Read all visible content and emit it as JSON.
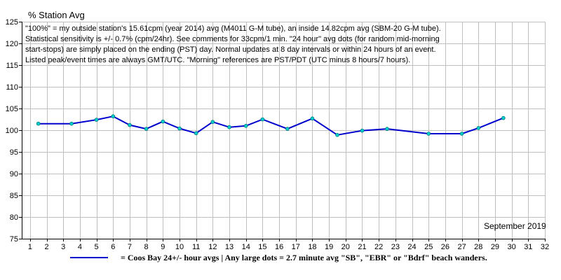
{
  "chart_data": {
    "type": "line",
    "title": "% Station Avg",
    "notes": [
      "\"100%\" = my outside station's 15.61cpm (year 2014) avg (M4011 G-M tube), an inside 14.82cpm avg (SBM-20 G-M tube).",
      "Statistical sensitivity is +/- 0.7% (cpm/24hr). See comments for 33cpm/1 min. \"24 hour\" avg dots (for random mid-morning",
      "start-stops) are simply placed on the ending (PST) day. Normal updates at 8 day intervals or within 24 hours of an event.",
      "Listed peak/event times are always GMT/UTC.  \"Morning\" references are PST/PDT (UTC minus 8 hours/7 hours)."
    ],
    "period_label": "September 2019",
    "xlim": [
      0.5,
      32
    ],
    "ylim": [
      75,
      125
    ],
    "x_ticks": [
      1,
      2,
      3,
      4,
      5,
      6,
      7,
      8,
      9,
      10,
      11,
      12,
      13,
      14,
      15,
      16,
      17,
      18,
      19,
      20,
      21,
      22,
      23,
      24,
      25,
      26,
      27,
      28,
      29,
      30,
      31,
      32
    ],
    "y_ticks": [
      75,
      80,
      85,
      90,
      95,
      100,
      105,
      110,
      115,
      120,
      125
    ],
    "grid": true,
    "series": [
      {
        "name": "= Coos Bay 24+/- hour avgs | Any large dots = 2.7 minute avg \"SB\", \"EBR\" or \"Bdrf\" beach wanders.",
        "x": [
          1.5,
          3.5,
          5,
          6,
          7,
          8,
          9,
          10,
          11,
          12,
          13,
          14,
          15,
          16.5,
          18,
          19.5,
          21,
          22.5,
          25,
          27,
          28,
          29.5
        ],
        "y": [
          101.5,
          101.5,
          102.4,
          103.2,
          101.2,
          100.3,
          102.0,
          100.4,
          99.3,
          101.9,
          100.7,
          101.0,
          102.5,
          100.3,
          102.7,
          98.9,
          99.9,
          100.3,
          99.2,
          99.2,
          100.5,
          102.8
        ]
      }
    ],
    "colors": {
      "line": "#0000cc",
      "dot": "#00cccc",
      "grid": "#c0c0c0",
      "axis": "#000000"
    }
  }
}
